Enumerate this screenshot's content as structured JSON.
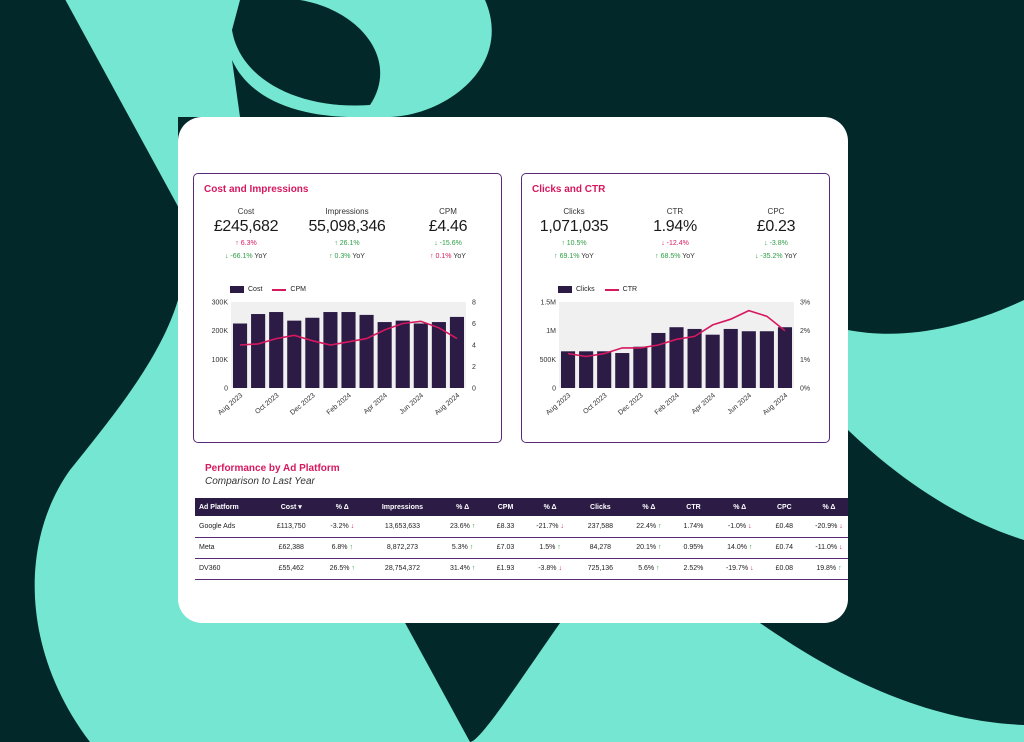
{
  "colors": {
    "background": "#03282a",
    "shape": "#75e6d2",
    "accent": "#d6185f",
    "bar": "#2b1b45",
    "positive": "#2e9e45"
  },
  "left_panel": {
    "title": "Cost and Impressions",
    "kpis": [
      {
        "label": "Cost",
        "value": "£245,682",
        "change": "6.3%",
        "change_dir": "up",
        "change_good": false,
        "yoy": "-66.1%",
        "yoy_dir": "down",
        "yoy_good": true
      },
      {
        "label": "Impressions",
        "value": "55,098,346",
        "change": "26.1%",
        "change_dir": "up",
        "change_good": true,
        "yoy": "0.3%",
        "yoy_dir": "up",
        "yoy_good": true
      },
      {
        "label": "CPM",
        "value": "£4.46",
        "change": "-15.6%",
        "change_dir": "down",
        "change_good": true,
        "yoy": "0.1%",
        "yoy_dir": "up",
        "yoy_good": false
      }
    ],
    "legend_bar": "Cost",
    "legend_line": "CPM"
  },
  "right_panel": {
    "title": "Clicks and CTR",
    "kpis": [
      {
        "label": "Clicks",
        "value": "1,071,035",
        "change": "10.5%",
        "change_dir": "up",
        "change_good": true,
        "yoy": "69.1%",
        "yoy_dir": "up",
        "yoy_good": true
      },
      {
        "label": "CTR",
        "value": "1.94%",
        "change": "-12.4%",
        "change_dir": "down",
        "change_good": false,
        "yoy": "68.5%",
        "yoy_dir": "up",
        "yoy_good": true
      },
      {
        "label": "CPC",
        "value": "£0.23",
        "change": "-3.8%",
        "change_dir": "down",
        "change_good": true,
        "yoy": "-35.2%",
        "yoy_dir": "down",
        "yoy_good": true
      }
    ],
    "legend_bar": "Clicks",
    "legend_line": "CTR"
  },
  "yoy_suffix": "YoY",
  "chart_data": [
    {
      "type": "bar",
      "categories": [
        "Aug 2023",
        "Sep 2023",
        "Oct 2023",
        "Nov 2023",
        "Dec 2023",
        "Jan 2024",
        "Feb 2024",
        "Mar 2024",
        "Apr 2024",
        "May 2024",
        "Jun 2024",
        "Jul 2024",
        "Aug 2024"
      ],
      "tick_labels": [
        "Aug 2023",
        "Oct 2023",
        "Dec 2023",
        "Feb 2024",
        "Apr 2024",
        "Jun 2024",
        "Aug 2024"
      ],
      "series": [
        {
          "name": "Cost",
          "type": "bar",
          "axis": "left",
          "values": [
            225000,
            258000,
            265000,
            235000,
            245000,
            265000,
            265000,
            255000,
            230000,
            235000,
            225000,
            230000,
            248000
          ]
        },
        {
          "name": "CPM",
          "type": "line",
          "axis": "right",
          "values": [
            4.0,
            4.1,
            4.6,
            4.9,
            4.4,
            4.0,
            4.3,
            4.6,
            5.4,
            6.0,
            6.2,
            5.6,
            4.6
          ]
        }
      ],
      "yticks_left": [
        "0",
        "100K",
        "200K",
        "300K"
      ],
      "ylim_left": [
        0,
        300000
      ],
      "yticks_right": [
        "0",
        "2",
        "4",
        "6",
        "8"
      ],
      "ylim_right": [
        0,
        8
      ]
    },
    {
      "type": "bar",
      "categories": [
        "Aug 2023",
        "Sep 2023",
        "Oct 2023",
        "Nov 2023",
        "Dec 2023",
        "Jan 2024",
        "Feb 2024",
        "Mar 2024",
        "Apr 2024",
        "May 2024",
        "Jun 2024",
        "Jul 2024",
        "Aug 2024"
      ],
      "tick_labels": [
        "Aug 2023",
        "Oct 2023",
        "Dec 2023",
        "Feb 2024",
        "Apr 2024",
        "Jun 2024",
        "Aug 2024"
      ],
      "series": [
        {
          "name": "Clicks",
          "type": "bar",
          "axis": "left",
          "values": [
            640000,
            640000,
            640000,
            610000,
            720000,
            960000,
            1060000,
            1030000,
            930000,
            1030000,
            990000,
            990000,
            1060000
          ]
        },
        {
          "name": "CTR",
          "type": "line",
          "axis": "right",
          "values": [
            1.2,
            1.1,
            1.2,
            1.4,
            1.4,
            1.5,
            1.7,
            1.8,
            2.2,
            2.4,
            2.7,
            2.5,
            2.0
          ]
        }
      ],
      "yticks_left": [
        "0",
        "500K",
        "1M",
        "1.5M"
      ],
      "ylim_left": [
        0,
        1500000
      ],
      "yticks_right": [
        "0%",
        "1%",
        "2%",
        "3%"
      ],
      "ylim_right": [
        0,
        3
      ]
    }
  ],
  "table": {
    "title": "Performance by Ad Platform",
    "subtitle": "Comparison to Last Year",
    "headers": [
      "Ad Platform",
      "Cost ▾",
      "% Δ",
      "Impressions",
      "% Δ",
      "CPM",
      "% Δ",
      "Clicks",
      "% Δ",
      "CTR",
      "% Δ",
      "CPC",
      "% Δ"
    ],
    "rows": [
      {
        "platform": "Google Ads",
        "cost": "£113,750",
        "cost_d": "-3.2%",
        "cost_a": "dn",
        "impr": "13,653,633",
        "impr_d": "23.6%",
        "impr_a": "up",
        "cpm": "£8.33",
        "cpm_d": "-21.7%",
        "cpm_a": "dn",
        "clicks": "237,588",
        "clicks_d": "22.4%",
        "clicks_a": "up",
        "ctr": "1.74%",
        "ctr_d": "-1.0%",
        "ctr_a": "dn",
        "cpc": "£0.48",
        "cpc_d": "-20.9%",
        "cpc_a": "dn"
      },
      {
        "platform": "Meta",
        "cost": "£62,388",
        "cost_d": "6.8%",
        "cost_a": "up",
        "impr": "8,872,273",
        "impr_d": "5.3%",
        "impr_a": "up",
        "cpm": "£7.03",
        "cpm_d": "1.5%",
        "cpm_a": "up",
        "clicks": "84,278",
        "clicks_d": "20.1%",
        "clicks_a": "up",
        "ctr": "0.95%",
        "ctr_d": "14.0%",
        "ctr_a": "up",
        "cpc": "£0.74",
        "cpc_d": "-11.0%",
        "cpc_a": "dn"
      },
      {
        "platform": "DV360",
        "cost": "£55,462",
        "cost_d": "26.5%",
        "cost_a": "up",
        "impr": "28,754,372",
        "impr_d": "31.4%",
        "impr_a": "up",
        "cpm": "£1.93",
        "cpm_d": "-3.8%",
        "cpm_a": "dn",
        "clicks": "725,136",
        "clicks_d": "5.6%",
        "clicks_a": "up",
        "ctr": "2.52%",
        "ctr_d": "-19.7%",
        "ctr_a": "dn",
        "cpc": "£0.08",
        "cpc_d": "19.8%",
        "cpc_a": "up"
      }
    ]
  }
}
